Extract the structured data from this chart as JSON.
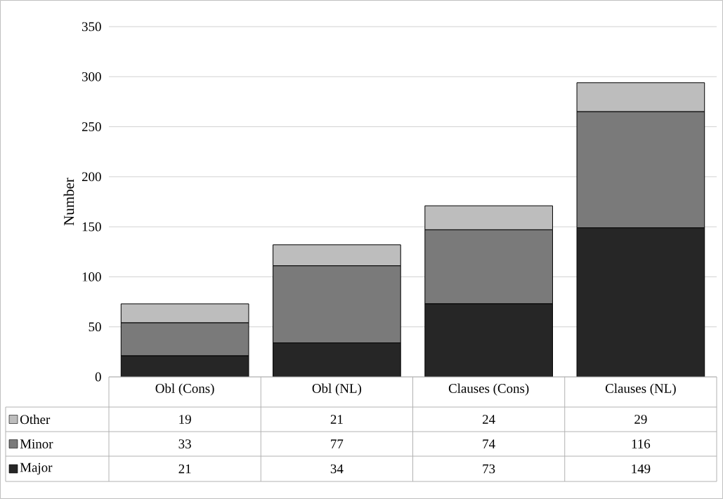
{
  "chart_data": {
    "type": "bar",
    "stacked": true,
    "ylabel": "Number",
    "categories": [
      "Obl (Cons)",
      "Obl (NL)",
      "Clauses (Cons)",
      "Clauses (NL)"
    ],
    "series": [
      {
        "name": "Major",
        "color": "#262626",
        "values": [
          21,
          34,
          73,
          149
        ]
      },
      {
        "name": "Minor",
        "color": "#7a7a7a",
        "values": [
          33,
          77,
          74,
          116
        ]
      },
      {
        "name": "Other",
        "color": "#bdbdbd",
        "values": [
          19,
          21,
          24,
          29
        ]
      }
    ],
    "ylim": [
      0,
      350
    ],
    "yticks": [
      0,
      50,
      100,
      150,
      200,
      250,
      300,
      350
    ],
    "grid": "y",
    "legend": "bottom",
    "data_labels": true
  }
}
